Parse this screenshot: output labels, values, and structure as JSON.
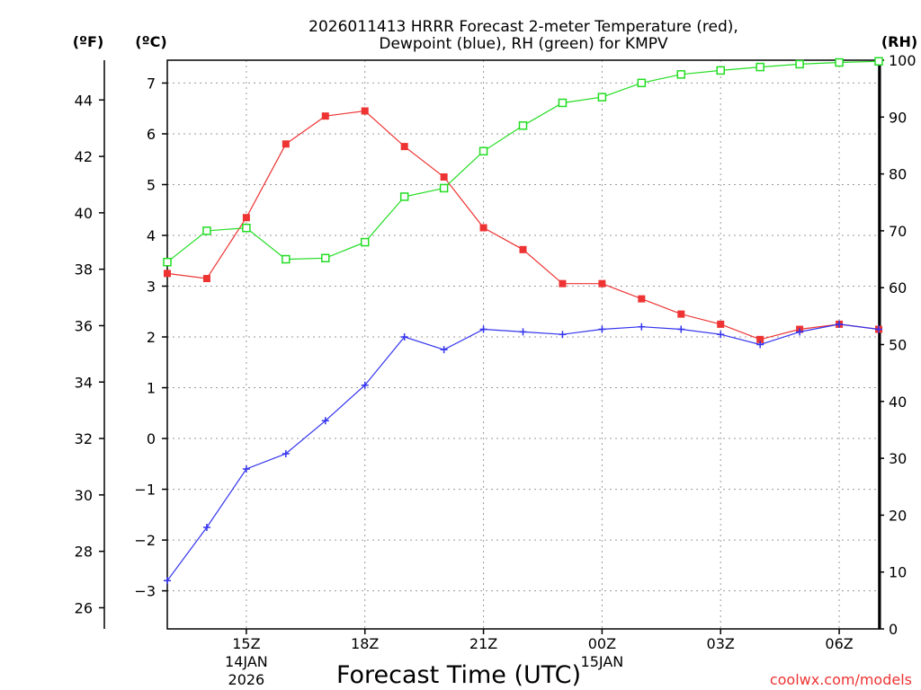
{
  "chart_data": {
    "type": "line",
    "title_line1": "2026011413 HRRR Forecast 2-meter Temperature (red),",
    "title_line2": "Dewpoint (blue), RH (green) for KMPV",
    "left_unit_f": "(ºF)",
    "left_unit_c": "(ºC)",
    "right_unit": "(RH)",
    "xlabel": "Forecast Time (UTC)",
    "credit": "coolwx.com/models",
    "x_hours": [
      13,
      14,
      15,
      16,
      17,
      18,
      19,
      20,
      21,
      22,
      23,
      24,
      25,
      26,
      27,
      28,
      29,
      30,
      31
    ],
    "xlim": [
      13,
      31
    ],
    "x_ticks": [
      {
        "hour": 15,
        "label": "15Z",
        "date": "14JAN",
        "year": "2026"
      },
      {
        "hour": 18,
        "label": "18Z",
        "date": "",
        "year": ""
      },
      {
        "hour": 21,
        "label": "21Z",
        "date": "",
        "year": ""
      },
      {
        "hour": 24,
        "label": "00Z",
        "date": "15JAN",
        "year": ""
      },
      {
        "hour": 27,
        "label": "03Z",
        "date": "",
        "year": ""
      },
      {
        "hour": 30,
        "label": "06Z",
        "date": "",
        "year": ""
      }
    ],
    "ylim_c": [
      -3.75,
      7.45
    ],
    "yticks_c": [
      "-3",
      "-2",
      "-1",
      "0",
      "1",
      "2",
      "3",
      "4",
      "5",
      "6",
      "7"
    ],
    "yticks_f": [
      "26",
      "28",
      "30",
      "32",
      "34",
      "36",
      "38",
      "40",
      "42",
      "44"
    ],
    "ylim_rh": [
      0,
      100
    ],
    "yticks_rh": [
      "0",
      "10",
      "20",
      "30",
      "40",
      "50",
      "60",
      "70",
      "80",
      "90",
      "100"
    ],
    "series": [
      {
        "name": "Temperature",
        "color": "#ee3333",
        "axis": "C",
        "marker": "filled-square",
        "values": [
          3.25,
          3.15,
          4.35,
          5.8,
          6.35,
          6.45,
          5.75,
          5.15,
          4.15,
          3.72,
          3.05,
          3.05,
          2.75,
          2.45,
          2.25,
          1.95,
          2.15,
          2.25,
          2.15
        ]
      },
      {
        "name": "Dewpoint",
        "color": "#3333ee",
        "axis": "C",
        "marker": "plus",
        "values": [
          -2.8,
          -1.75,
          -0.6,
          -0.3,
          0.35,
          1.05,
          2.0,
          1.75,
          2.15,
          2.1,
          2.05,
          2.15,
          2.2,
          2.15,
          2.05,
          1.85,
          2.1,
          2.25,
          2.15
        ]
      },
      {
        "name": "RH",
        "color": "#22dd22",
        "axis": "RH",
        "marker": "open-square",
        "values": [
          64.5,
          70.0,
          70.5,
          65.0,
          65.2,
          68.0,
          76.0,
          77.5,
          84.0,
          88.5,
          92.5,
          93.5,
          96.0,
          97.5,
          98.2,
          98.8,
          99.3,
          99.6,
          99.8
        ]
      }
    ]
  }
}
